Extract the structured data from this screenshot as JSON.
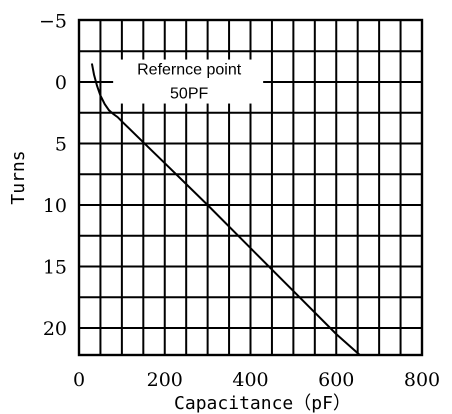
{
  "chart_data": {
    "type": "line",
    "xlabel": "Capacitance（pF）",
    "ylabel": "Turns",
    "xlim": [
      0,
      800
    ],
    "ylim": [
      -5,
      22
    ],
    "y_inverted": true,
    "grid": true,
    "x_ticks": [
      0,
      200,
      400,
      600,
      800
    ],
    "y_ticks": [
      -5,
      0,
      5,
      10,
      15,
      20
    ],
    "x_tick_labels": [
      "0",
      "200",
      "400",
      "600",
      "800"
    ],
    "y_tick_labels": [
      "−5",
      "0",
      "5",
      "10",
      "15",
      "20"
    ],
    "annotation": {
      "line1": "Refernce point",
      "line2": "50PF",
      "x": 75,
      "y": -1
    },
    "series": [
      {
        "x": [
          30,
          35,
          42,
          50,
          60,
          70,
          80,
          90,
          100,
          150,
          200,
          300,
          400,
          500,
          600,
          655
        ],
        "y": [
          -1.5,
          -0.6,
          0.3,
          1.1,
          1.8,
          2.3,
          2.6,
          2.85,
          3.2,
          4.9,
          6.6,
          10.0,
          13.5,
          17.0,
          20.5,
          22.2
        ]
      }
    ]
  }
}
